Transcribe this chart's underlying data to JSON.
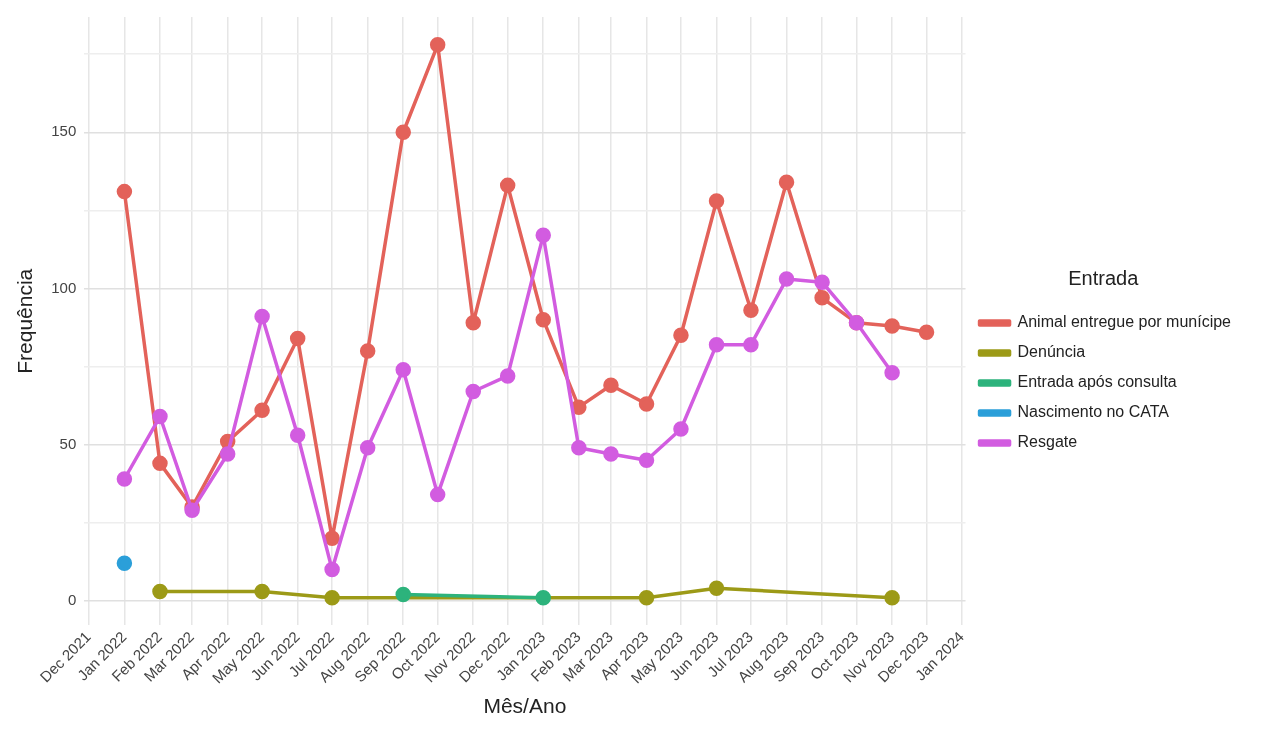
{
  "chart_data": {
    "type": "line",
    "xlabel": "Mês/Ano",
    "ylabel": "Frequência",
    "legend_title": "Entrada",
    "legend": "right",
    "grid": true,
    "marker": "circle",
    "line_style": "solid",
    "xlim": [
      "2021-11-27",
      "2024-01-04"
    ],
    "xticks": [
      {
        "value": "2021-12",
        "label": "Dec 2021"
      },
      {
        "value": "2022-01",
        "label": "Jan 2022"
      },
      {
        "value": "2022-02",
        "label": "Feb 2022"
      },
      {
        "value": "2022-03",
        "label": "Mar 2022"
      },
      {
        "value": "2022-04",
        "label": "Apr 2022"
      },
      {
        "value": "2022-05",
        "label": "May 2022"
      },
      {
        "value": "2022-06",
        "label": "Jun 2022"
      },
      {
        "value": "2022-07",
        "label": "Jul 2022"
      },
      {
        "value": "2022-08",
        "label": "Aug 2022"
      },
      {
        "value": "2022-09",
        "label": "Sep 2022"
      },
      {
        "value": "2022-10",
        "label": "Oct 2022"
      },
      {
        "value": "2022-11",
        "label": "Nov 2022"
      },
      {
        "value": "2022-12",
        "label": "Dec 2022"
      },
      {
        "value": "2023-01",
        "label": "Jan 2023"
      },
      {
        "value": "2023-02",
        "label": "Feb 2023"
      },
      {
        "value": "2023-03",
        "label": "Mar 2023"
      },
      {
        "value": "2023-04",
        "label": "Apr 2023"
      },
      {
        "value": "2023-05",
        "label": "May 2023"
      },
      {
        "value": "2023-06",
        "label": "Jun 2023"
      },
      {
        "value": "2023-07",
        "label": "Jul 2023"
      },
      {
        "value": "2023-08",
        "label": "Aug 2023"
      },
      {
        "value": "2023-09",
        "label": "Sep 2023"
      },
      {
        "value": "2023-10",
        "label": "Oct 2023"
      },
      {
        "value": "2023-11",
        "label": "Nov 2023"
      },
      {
        "value": "2023-12",
        "label": "Dec 2023"
      },
      {
        "value": "2024-01",
        "label": "Jan 2024"
      }
    ],
    "ylim": [
      -7.9,
      186.9
    ],
    "yticks": [
      0,
      {
        "value": 25,
        "label": null
      },
      50,
      {
        "value": 75,
        "label": null
      },
      100,
      {
        "value": 125,
        "label": null
      },
      150,
      {
        "value": 175,
        "label": null
      }
    ],
    "series": [
      {
        "name": "Animal entregue por munícipe",
        "color": "#e3625a",
        "x": [
          "2022-01",
          "2022-02",
          "2022-03",
          "2022-04",
          "2022-05",
          "2022-06",
          "2022-07",
          "2022-08",
          "2022-09",
          "2022-10",
          "2022-11",
          "2022-12",
          "2023-01",
          "2023-02",
          "2023-03",
          "2023-04",
          "2023-05",
          "2023-06",
          "2023-07",
          "2023-08",
          "2023-09",
          "2023-10",
          "2023-11",
          "2023-12"
        ],
        "values": [
          131,
          44,
          30,
          51,
          61,
          84,
          20,
          80,
          150,
          178,
          89,
          133,
          90,
          62,
          69,
          63,
          85,
          128,
          93,
          134,
          97,
          89,
          88,
          86
        ]
      },
      {
        "name": "Denúncia",
        "color": "#9c9a17",
        "x": [
          "2022-02",
          "2022-05",
          "2022-07",
          "2023-04",
          "2023-06",
          "2023-11"
        ],
        "values": [
          3,
          3,
          1,
          1,
          4,
          1
        ]
      },
      {
        "name": "Entrada após consulta",
        "color": "#2db37c",
        "x": [
          "2022-09",
          "2023-01"
        ],
        "values": [
          2,
          1
        ]
      },
      {
        "name": "Nascimento no CATA",
        "color": "#2b9fd9",
        "x": [
          "2022-01"
        ],
        "values": [
          12
        ]
      },
      {
        "name": "Resgate",
        "color": "#d25ce0",
        "x": [
          "2022-01",
          "2022-02",
          "2022-03",
          "2022-04",
          "2022-05",
          "2022-06",
          "2022-07",
          "2022-08",
          "2022-09",
          "2022-10",
          "2022-11",
          "2022-12",
          "2023-01",
          "2023-02",
          "2023-03",
          "2023-04",
          "2023-05",
          "2023-06",
          "2023-07",
          "2023-08",
          "2023-09",
          "2023-10",
          "2023-11"
        ],
        "values": [
          39,
          59,
          29,
          47,
          91,
          53,
          10,
          49,
          74,
          34,
          67,
          72,
          117,
          49,
          47,
          45,
          55,
          82,
          82,
          103,
          102,
          89,
          73
        ]
      }
    ]
  }
}
